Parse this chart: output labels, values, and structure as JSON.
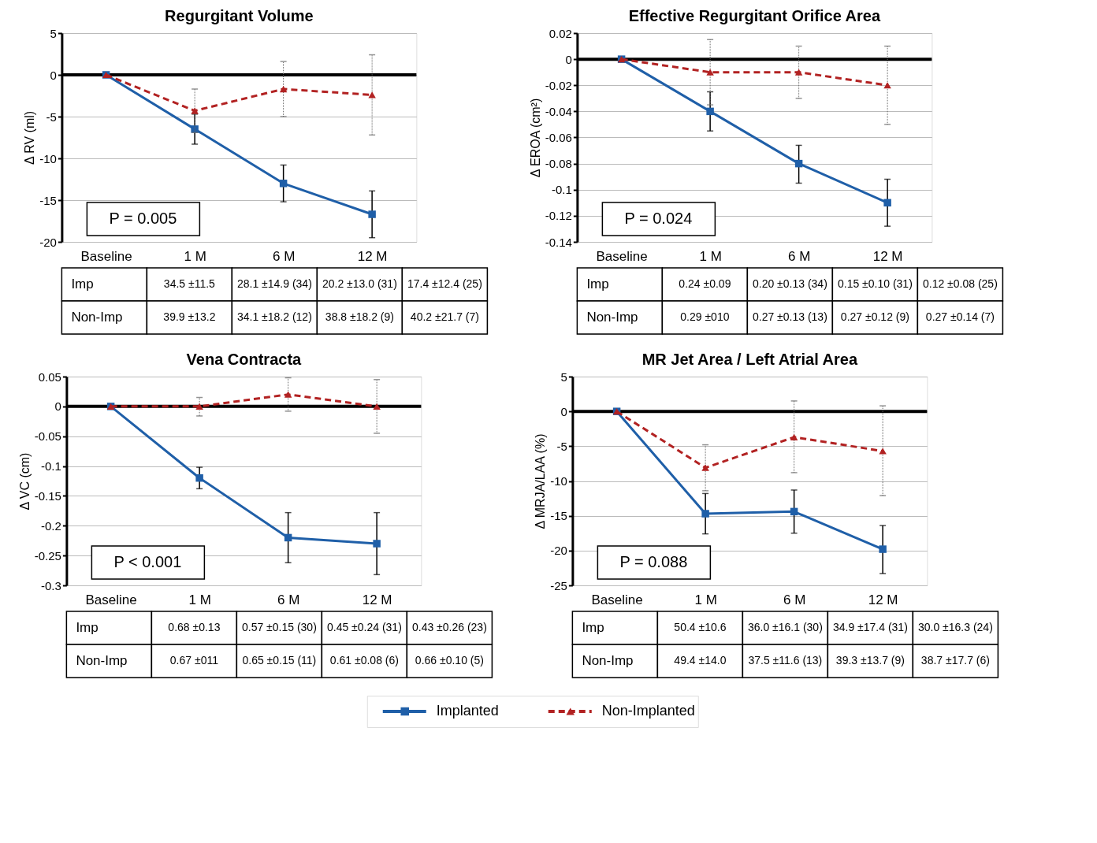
{
  "chart_data": [
    {
      "type": "line",
      "title": "Regurgitant Volume",
      "ylabel": "Δ RV (ml)",
      "categories": [
        "Baseline",
        "1 M",
        "6 M",
        "12 M"
      ],
      "ylim": [
        -20,
        5
      ],
      "yticks": [
        -20,
        -15,
        -10,
        -5,
        0,
        5
      ],
      "grid": "y",
      "legend": "bottom",
      "ref_lines": [
        {
          "axis": "y",
          "value": 0,
          "color": "#000000"
        }
      ],
      "series": [
        {
          "name": "Implanted",
          "type": "line",
          "color": "#1f5fa8",
          "marker": "square",
          "line_style": "solid",
          "values": [
            0,
            -6.5,
            -13.0,
            -16.7
          ],
          "errors": [
            null,
            [
              -8.3,
              -4.7
            ],
            [
              -15.2,
              -10.8
            ],
            [
              -19.5,
              -13.9
            ]
          ]
        },
        {
          "name": "Non-Implanted",
          "type": "line",
          "color": "#b22222",
          "marker": "triangle",
          "line_style": "dashed",
          "values": [
            0,
            -4.3,
            -1.7,
            -2.4
          ],
          "errors": [
            null,
            [
              -6.9,
              -1.7
            ],
            [
              -5.0,
              1.6
            ],
            [
              -7.2,
              2.4
            ]
          ]
        }
      ],
      "annotations": [
        "P = 0.005",
        "Imp",
        "34.5 ±11.5",
        "28.1 ±14.9 (34)",
        "20.2 ±13.0 (31)",
        "17.4 ±12.4 (25)",
        "Non-Imp",
        "39.9 ±13.2",
        "34.1 ±18.2 (12)",
        "38.8 ±18.2 (9)",
        "40.2 ±21.7 (7)"
      ]
    },
    {
      "type": "line",
      "title": "Effective Regurgitant Orifice Area",
      "ylabel": "Δ EROA (cm²)",
      "categories": [
        "Baseline",
        "1 M",
        "6 M",
        "12 M"
      ],
      "ylim": [
        -0.14,
        0.02
      ],
      "yticks": [
        -0.14,
        -0.12,
        -0.1,
        -0.08,
        -0.06,
        -0.04,
        -0.02,
        0,
        0.02
      ],
      "grid": "y",
      "ref_lines": [
        {
          "axis": "y",
          "value": 0,
          "color": "#000000"
        }
      ],
      "series": [
        {
          "name": "Implanted",
          "type": "line",
          "color": "#1f5fa8",
          "marker": "square",
          "line_style": "solid",
          "values": [
            0,
            -0.04,
            -0.08,
            -0.11
          ],
          "errors": [
            null,
            [
              -0.055,
              -0.025
            ],
            [
              -0.095,
              -0.066
            ],
            [
              -0.128,
              -0.092
            ]
          ]
        },
        {
          "name": "Non-Implanted",
          "type": "line",
          "color": "#b22222",
          "marker": "triangle",
          "line_style": "dashed",
          "values": [
            0,
            -0.01,
            -0.01,
            -0.02
          ],
          "errors": [
            null,
            [
              -0.035,
              0.015
            ],
            [
              -0.03,
              0.01
            ],
            [
              -0.05,
              0.01
            ]
          ]
        }
      ],
      "annotations": [
        "P = 0.024",
        "Imp",
        "0.24 ±0.09",
        "0.20 ±0.13 (34)",
        "0.15 ±0.10 (31)",
        "0.12 ±0.08 (25)",
        "Non-Imp",
        "0.29 ±010",
        "0.27 ±0.13 (13)",
        "0.27 ±0.12 (9)",
        "0.27 ±0.14 (7)"
      ]
    },
    {
      "type": "line",
      "title": "Vena Contracta",
      "ylabel": "Δ VC (cm)",
      "categories": [
        "Baseline",
        "1 M",
        "6 M",
        "12 M"
      ],
      "ylim": [
        -0.3,
        0.05
      ],
      "yticks": [
        -0.3,
        -0.25,
        -0.2,
        -0.15,
        -0.1,
        -0.05,
        0,
        0.05
      ],
      "grid": "y",
      "ref_lines": [
        {
          "axis": "y",
          "value": 0,
          "color": "#000000"
        }
      ],
      "series": [
        {
          "name": "Implanted",
          "type": "line",
          "color": "#1f5fa8",
          "marker": "square",
          "line_style": "solid",
          "values": [
            0,
            -0.12,
            -0.22,
            -0.23
          ],
          "errors": [
            null,
            [
              -0.138,
              -0.102
            ],
            [
              -0.262,
              -0.178
            ],
            [
              -0.282,
              -0.178
            ]
          ]
        },
        {
          "name": "Non-Implanted",
          "type": "line",
          "color": "#b22222",
          "marker": "triangle",
          "line_style": "dashed",
          "values": [
            0,
            0,
            0.02,
            0
          ],
          "errors": [
            null,
            [
              -0.016,
              0.015
            ],
            [
              -0.008,
              0.048
            ],
            [
              -0.045,
              0.045
            ]
          ]
        }
      ],
      "annotations": [
        "P < 0.001",
        "Imp",
        "0.68 ±0.13",
        "0.57 ±0.15 (30)",
        "0.45 ±0.24 (31)",
        "0.43 ±0.26 (23)",
        "Non-Imp",
        "0.67 ±011",
        "0.65 ±0.15 (11)",
        "0.61 ±0.08 (6)",
        "0.66 ±0.10 (5)"
      ]
    },
    {
      "type": "line",
      "title": "MR Jet Area / Left Atrial Area",
      "ylabel": "Δ MRJA/LAA  (%)",
      "categories": [
        "Baseline",
        "1 M",
        "6 M",
        "12 M"
      ],
      "ylim": [
        -25,
        5
      ],
      "yticks": [
        -25,
        -20,
        -15,
        -10,
        -5,
        0,
        5
      ],
      "grid": "y",
      "ref_lines": [
        {
          "axis": "y",
          "value": 0,
          "color": "#000000"
        }
      ],
      "series": [
        {
          "name": "Implanted",
          "type": "line",
          "color": "#1f5fa8",
          "marker": "square",
          "line_style": "solid",
          "values": [
            0,
            -14.7,
            -14.4,
            -19.8
          ],
          "errors": [
            null,
            [
              -17.6,
              -11.8
            ],
            [
              -17.5,
              -11.3
            ],
            [
              -23.3,
              -16.4
            ]
          ]
        },
        {
          "name": "Non-Implanted",
          "type": "line",
          "color": "#b22222",
          "marker": "triangle",
          "line_style": "dashed",
          "values": [
            0,
            -8.1,
            -3.7,
            -5.7
          ],
          "errors": [
            null,
            [
              -11.4,
              -4.8
            ],
            [
              -8.8,
              1.5
            ],
            [
              -12.1,
              0.8
            ]
          ]
        }
      ],
      "annotations": [
        "P = 0.088",
        "Imp",
        "50.4 ±10.6",
        "36.0 ±16.1 (30)",
        "34.9 ±17.4 (31)",
        "30.0 ±16.3 (24)",
        "Non-Imp",
        "49.4 ±14.0",
        "37.5 ±11.6 (13)",
        "39.3 ±13.7 (9)",
        "38.7 ±17.7 (6)"
      ]
    }
  ]
}
